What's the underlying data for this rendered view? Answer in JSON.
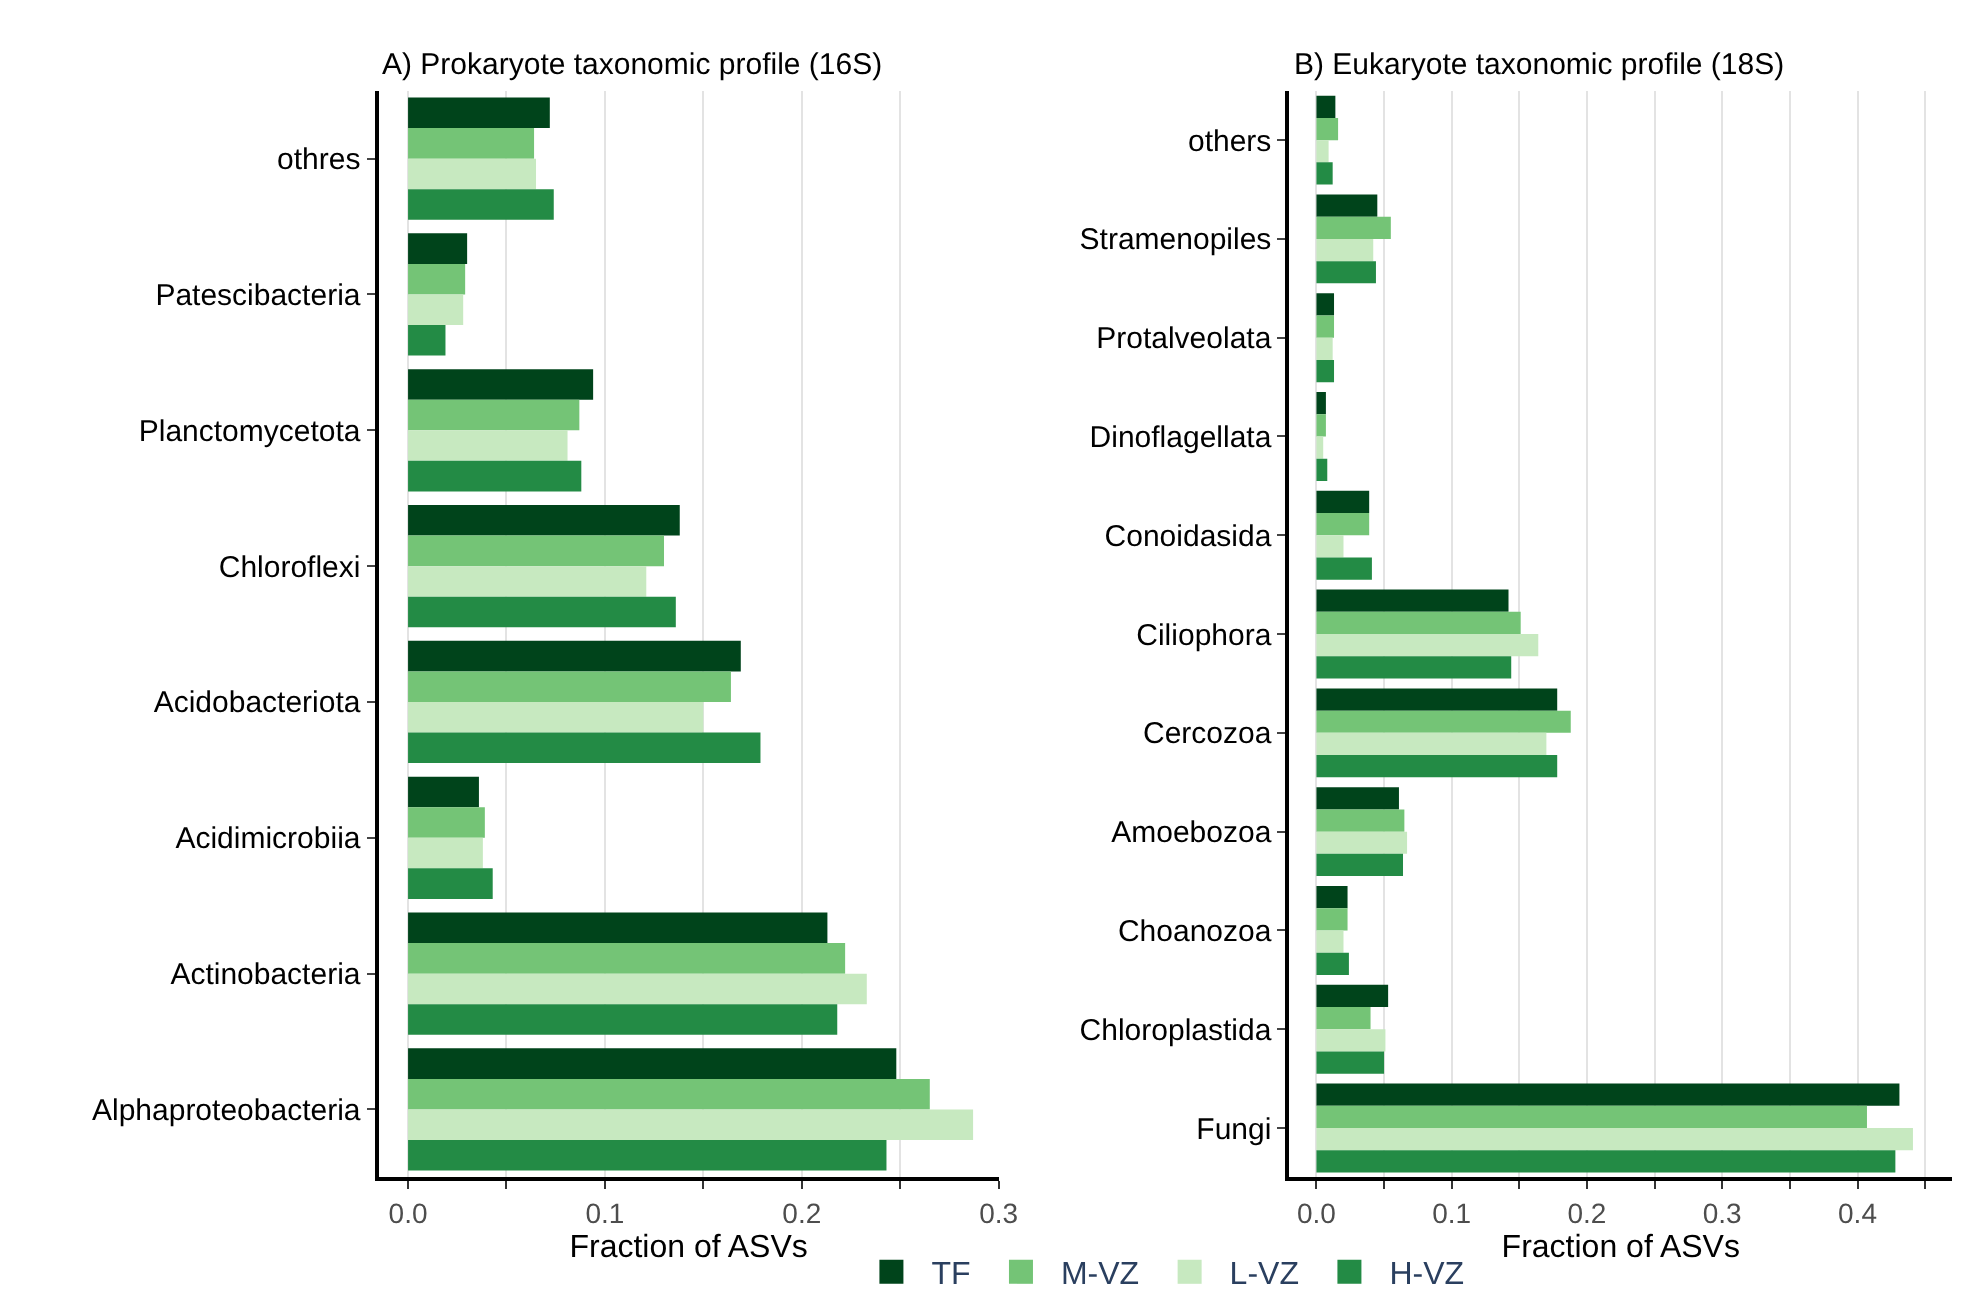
{
  "chart_data": [
    {
      "type": "bar",
      "orientation": "horizontal",
      "title": "A) Prokaryote taxonomic profile (16S)",
      "xlabel": "Fraction of ASVs",
      "categories": [
        "othres",
        "Patescibacteria",
        "Planctomycetota",
        "Chloroflexi",
        "Acidobacteriota",
        "Acidimicrobiia",
        "Actinobacteria",
        "Alphaproteobacteria"
      ],
      "series": [
        {
          "name": "TF",
          "color": "#00441b",
          "values": [
            0.072,
            0.03,
            0.094,
            0.138,
            0.169,
            0.036,
            0.213,
            0.248
          ]
        },
        {
          "name": "M-VZ",
          "color": "#74c476",
          "values": [
            0.064,
            0.029,
            0.087,
            0.13,
            0.164,
            0.039,
            0.222,
            0.265
          ]
        },
        {
          "name": "L-VZ",
          "color": "#c7e9c0",
          "values": [
            0.065,
            0.028,
            0.081,
            0.121,
            0.15,
            0.038,
            0.233,
            0.287
          ]
        },
        {
          "name": "H-VZ",
          "color": "#238b45",
          "values": [
            0.074,
            0.019,
            0.088,
            0.136,
            0.179,
            0.043,
            0.218,
            0.243
          ]
        }
      ],
      "xlim": [
        -0.015,
        0.3
      ],
      "xticks": [
        {
          "value": 0,
          "label": "0.0"
        },
        {
          "value": 0.05,
          "label": null
        },
        0.1,
        {
          "value": 0.15,
          "label": null
        },
        0.2,
        {
          "value": 0.25,
          "label": null
        },
        0.3
      ],
      "grid": "x",
      "legend": "bottom"
    },
    {
      "type": "bar",
      "orientation": "horizontal",
      "title": "B) Eukaryote taxonomic profile (18S)",
      "xlabel": "Fraction of ASVs",
      "categories": [
        "others",
        "Stramenopiles",
        "Protalveolata",
        "Dinoflagellata",
        "Conoidasida",
        "Ciliophora",
        "Cercozoa",
        "Amoebozoa",
        "Choanozoa",
        "Chloroplastida",
        "Fungi"
      ],
      "series": [
        {
          "color": "#00441b",
          "values": [
            0.014,
            0.045,
            0.013,
            0.007,
            0.039,
            0.142,
            0.178,
            0.061,
            0.023,
            0.053,
            0.431
          ]
        },
        {
          "color": "#74c476",
          "values": [
            0.016,
            0.055,
            0.013,
            0.007,
            0.039,
            0.151,
            0.188,
            0.065,
            0.023,
            0.04,
            0.407
          ]
        },
        {
          "color": "#c7e9c0",
          "values": [
            0.009,
            0.042,
            0.012,
            0.005,
            0.02,
            0.164,
            0.17,
            0.067,
            0.02,
            0.051,
            0.441
          ]
        },
        {
          "color": "#238b45",
          "values": [
            0.012,
            0.044,
            0.013,
            0.008,
            0.041,
            0.144,
            0.178,
            0.064,
            0.024,
            0.05,
            0.428
          ]
        }
      ],
      "xlim": [
        -0.02,
        0.47
      ],
      "xticks": [
        {
          "value": 0,
          "label": "0.0"
        },
        {
          "value": 0.05,
          "label": null
        },
        0.1,
        {
          "value": 0.15,
          "label": null
        },
        0.2,
        {
          "value": 0.25,
          "label": null
        },
        0.3,
        {
          "value": 0.35,
          "label": null
        },
        0.4,
        {
          "value": 0.45,
          "label": null
        }
      ],
      "grid": "x",
      "legend": false
    }
  ]
}
